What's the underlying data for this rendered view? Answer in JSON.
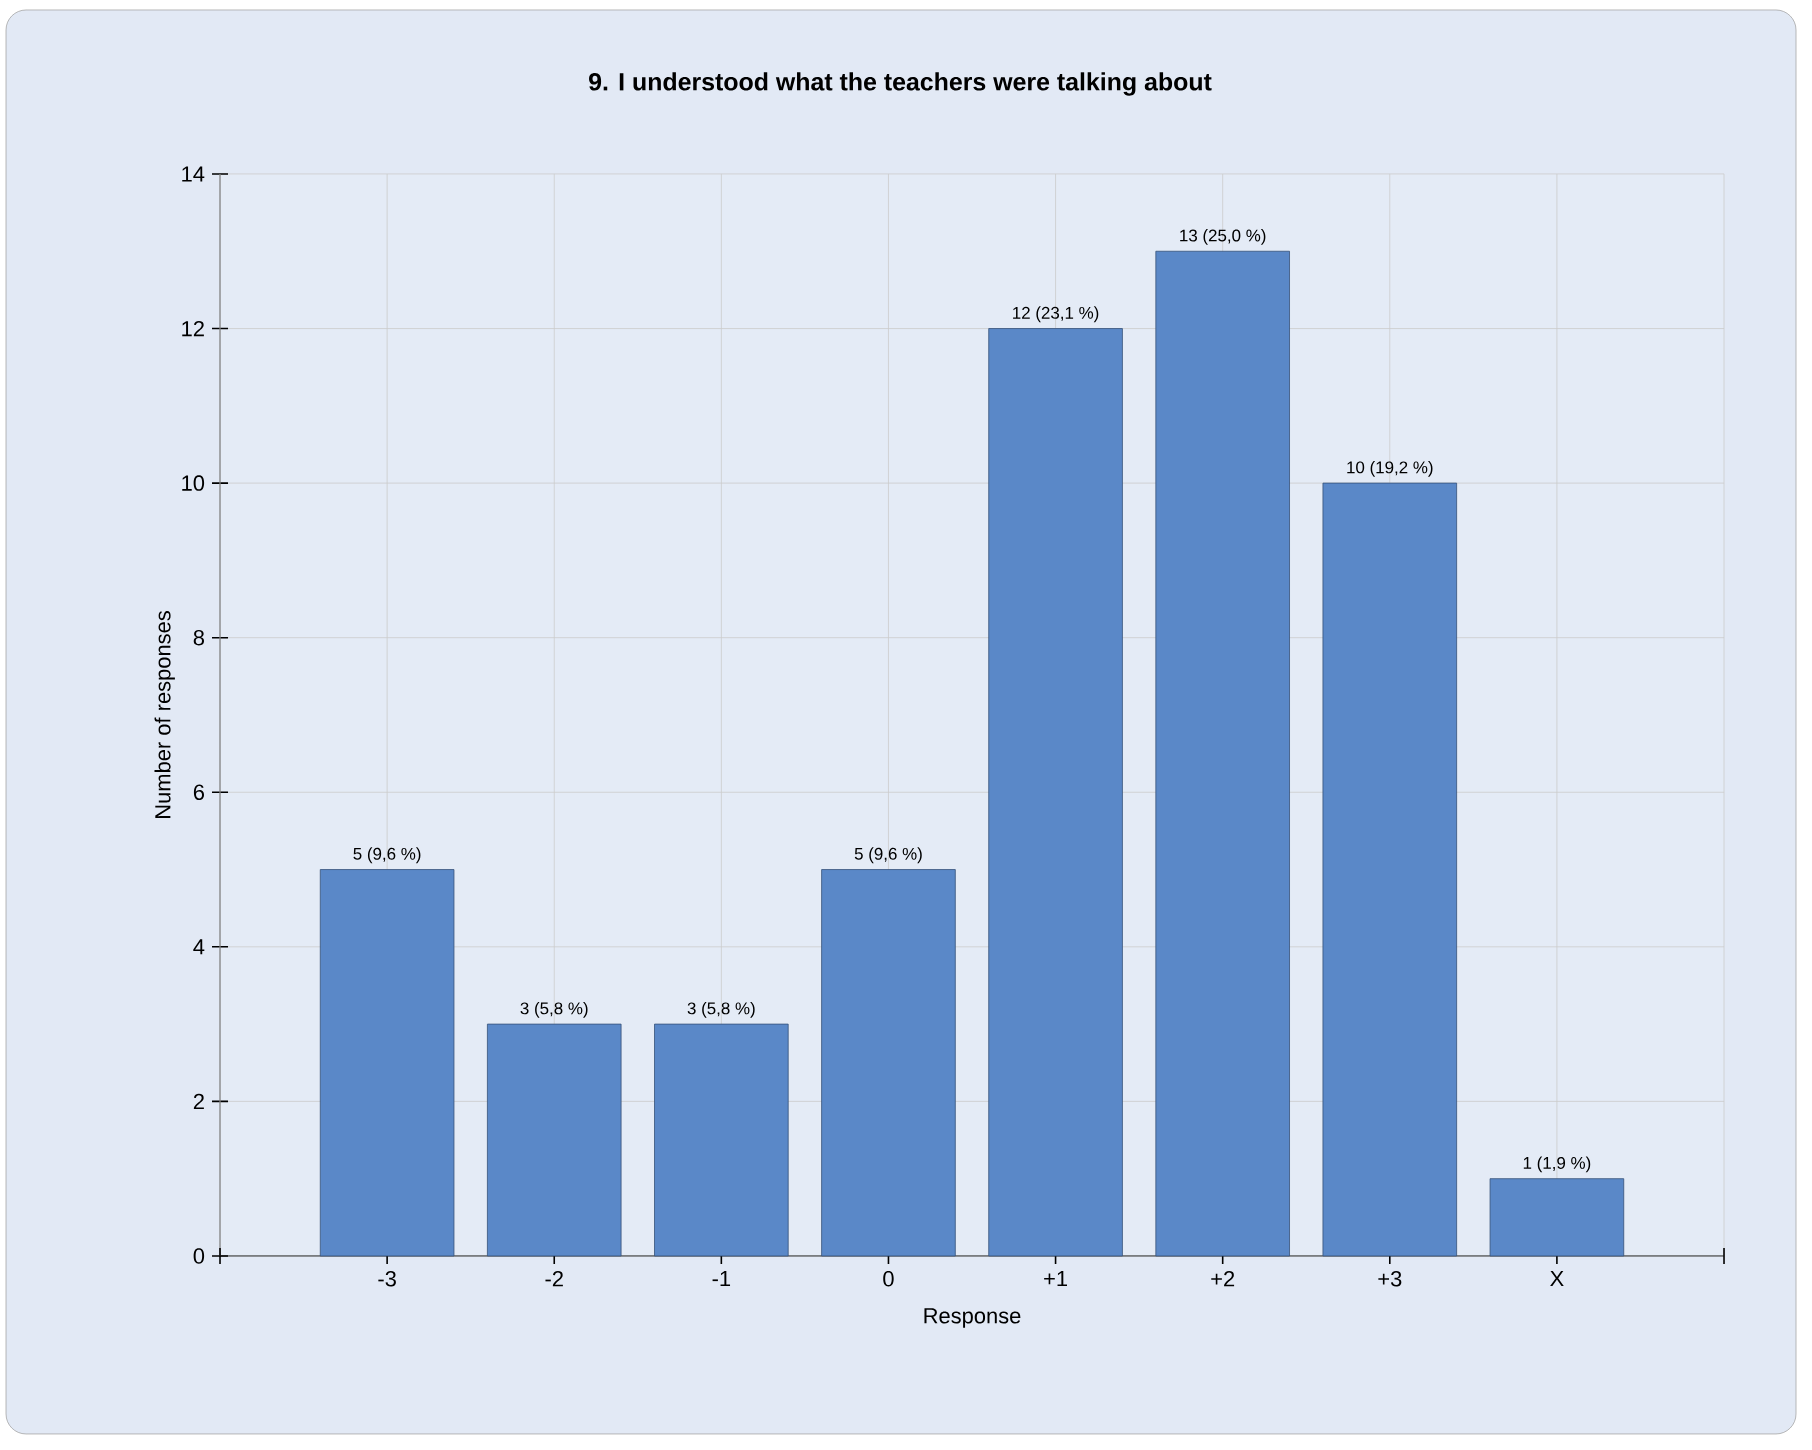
{
  "chart_data": {
    "type": "bar",
    "title": "9. I understood what the teachers were talking about",
    "xlabel": "Response",
    "ylabel": "Number of responses",
    "categories": [
      "-3",
      "-2",
      "-1",
      "0",
      "+1",
      "+2",
      "+3",
      "X"
    ],
    "values": [
      5,
      3,
      3,
      5,
      12,
      13,
      10,
      1
    ],
    "value_labels": [
      "5 (9,6 %)",
      "3 (5,8 %)",
      "3 (5,8 %)",
      "5 (9,6 %)",
      "12 (23,1 %)",
      "13 (25,0 %)",
      "10 (19,2 %)",
      "1 (1,9 %)"
    ],
    "color": "#5a88c8",
    "ylim": [
      0,
      14
    ],
    "yticks": [
      0,
      2,
      4,
      6,
      8,
      10,
      12,
      14
    ],
    "grid": true
  }
}
